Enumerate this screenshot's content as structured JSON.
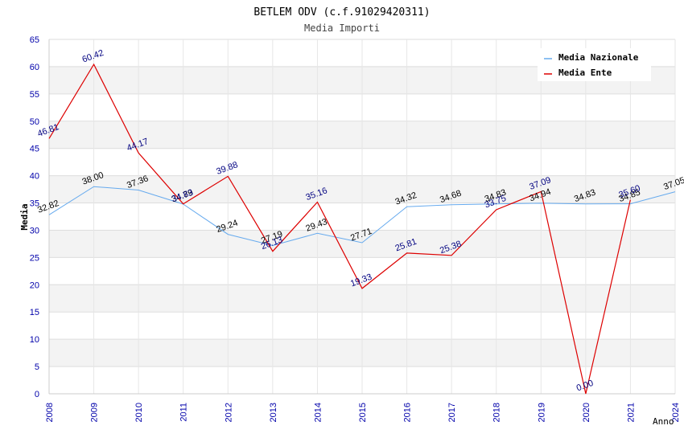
{
  "chart_data": {
    "type": "line",
    "title": "BETLEM ODV (c.f.91029420311)",
    "subtitle": "Media Importi",
    "xlabel": "Anno",
    "ylabel": "Media",
    "ylim": [
      0,
      65
    ],
    "ytick_step": 5,
    "x": [
      "2008",
      "2009",
      "2010",
      "2011",
      "2012",
      "2013",
      "2014",
      "2015",
      "2016",
      "2017",
      "2018",
      "2019",
      "2020",
      "2021",
      "2024"
    ],
    "grid": true,
    "legend_position": "top-right",
    "series": [
      {
        "name": "Media Nazionale",
        "color": "#66aaee",
        "label_color": "#000000",
        "values": [
          32.82,
          38.0,
          37.36,
          34.79,
          29.24,
          27.19,
          29.43,
          27.71,
          34.32,
          34.68,
          34.83,
          34.94,
          34.83,
          34.85,
          37.05
        ],
        "labels": [
          "32.82",
          "38.00",
          "37.36",
          "34.79",
          "29.24",
          "27.19",
          "29.43",
          "27.71",
          "34.32",
          "34.68",
          "34.83",
          "34.94",
          "34.83",
          "34.85",
          "37.05"
        ]
      },
      {
        "name": "Media Ente",
        "color": "#dd0000",
        "label_color": "#000080",
        "values": [
          46.81,
          60.42,
          44.17,
          34.83,
          39.88,
          26.13,
          35.16,
          19.33,
          25.81,
          25.38,
          33.75,
          37.09,
          0.0,
          35.6,
          null
        ],
        "labels": [
          "46.81",
          "60.42",
          "44.17",
          "34.83",
          "39.88",
          "26.13",
          "35.16",
          "19.33",
          "25.81",
          "25.38",
          "33.75",
          "37.09",
          "0.00",
          "35.60",
          null
        ]
      }
    ]
  }
}
